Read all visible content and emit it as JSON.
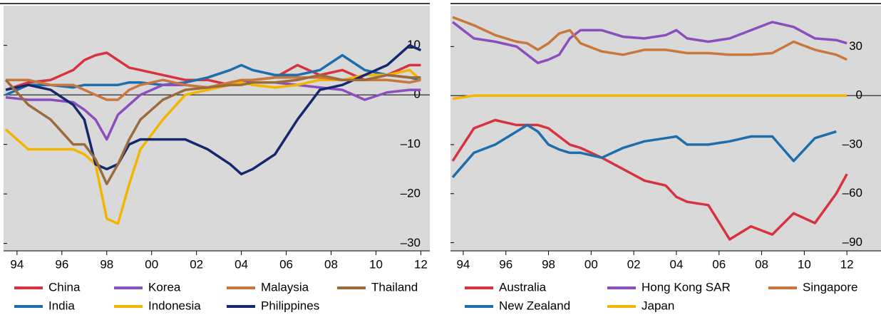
{
  "chart_data": [
    {
      "type": "line",
      "x": [
        1993.5,
        1994.5,
        1995.5,
        1996.5,
        1997.0,
        1997.5,
        1998.0,
        1998.5,
        1999.0,
        1999.5,
        2000.5,
        2001.5,
        2002.5,
        2003.5,
        2004.0,
        2004.5,
        2005.5,
        2006.5,
        2007.5,
        2008.5,
        2009.5,
        2010.5,
        2011.5,
        2012.0
      ],
      "xlim": [
        1993.4,
        2012.4
      ],
      "xticks": [
        {
          "value": 1994,
          "label": "94"
        },
        {
          "value": 1996,
          "label": "96"
        },
        {
          "value": 1998,
          "label": "98"
        },
        {
          "value": 2000,
          "label": "00"
        },
        {
          "value": 2002,
          "label": "02"
        },
        {
          "value": 2004,
          "label": "04"
        },
        {
          "value": 2006,
          "label": "06"
        },
        {
          "value": 2008,
          "label": "08"
        },
        {
          "value": 2010,
          "label": "10"
        },
        {
          "value": 2012,
          "label": "12"
        }
      ],
      "ylim": [
        -31.5,
        18
      ],
      "yticks": [
        {
          "value": -30,
          "label": "–30"
        },
        {
          "value": -20,
          "label": "–20"
        },
        {
          "value": -10,
          "label": "–10"
        },
        0,
        10
      ],
      "series": [
        {
          "name": "China",
          "color": "#d8323e",
          "values": [
            1,
            2.5,
            3,
            5,
            7,
            8,
            8.5,
            7,
            5.5,
            5,
            4,
            3,
            3,
            2,
            2.5,
            3,
            3.5,
            6,
            4,
            5,
            3,
            4,
            6,
            6
          ]
        },
        {
          "name": "India",
          "color": "#1f6eac",
          "values": [
            0,
            2,
            2,
            1.5,
            2,
            2,
            2,
            2,
            2.5,
            2.5,
            2,
            2.5,
            3.5,
            5,
            6,
            5,
            4,
            4,
            5,
            8,
            5,
            4,
            3.5,
            3
          ]
        },
        {
          "name": "Korea",
          "color": "#8b4fbd",
          "values": [
            -0.5,
            -1,
            -1,
            -1.5,
            -3,
            -5,
            -9,
            -4,
            -2,
            0,
            2,
            2,
            1.5,
            2,
            2.5,
            2.5,
            2.5,
            2,
            1.5,
            1,
            -1,
            0.5,
            1,
            1
          ]
        },
        {
          "name": "Indonesia",
          "color": "#f2b500",
          "values": [
            -7,
            -11,
            -11,
            -11,
            -12,
            -14,
            -25,
            -26,
            -18,
            -11,
            -5,
            0,
            1,
            2,
            2.5,
            2,
            1.5,
            2,
            3,
            3,
            4,
            4,
            5,
            3
          ]
        },
        {
          "name": "Malaysia",
          "color": "#c9773d",
          "values": [
            3,
            3,
            2,
            2,
            1,
            0,
            -1,
            -1,
            1,
            2,
            3,
            2,
            1.5,
            2.5,
            3,
            3,
            3.5,
            3.5,
            3.5,
            3,
            3,
            3,
            2.5,
            3
          ]
        },
        {
          "name": "Philippines",
          "color": "#14286e",
          "values": [
            1,
            2,
            1,
            -2,
            -5,
            -14,
            -15,
            -14,
            -10,
            -9,
            -9,
            -9,
            -11,
            -14,
            -16,
            -15,
            -12,
            -5,
            1,
            2,
            4,
            6,
            10,
            9
          ]
        },
        {
          "name": "Thailand",
          "color": "#9b6b3c",
          "values": [
            3,
            -2,
            -5,
            -10,
            -10,
            -13,
            -18,
            -14,
            -9,
            -5,
            -1,
            1,
            1.5,
            2,
            2,
            2.5,
            2.5,
            3,
            4,
            3,
            3,
            4,
            3.5,
            3.5
          ]
        }
      ]
    },
    {
      "type": "line",
      "x": [
        1993.5,
        1994.5,
        1995.5,
        1996.5,
        1997.0,
        1997.5,
        1998.0,
        1998.5,
        1999.0,
        1999.5,
        2000.5,
        2001.5,
        2002.5,
        2003.5,
        2004.0,
        2004.5,
        2005.5,
        2006.5,
        2007.5,
        2008.5,
        2009.5,
        2010.5,
        2011.5,
        2012.0
      ],
      "xlim": [
        1993.4,
        2013.6
      ],
      "xticks": [
        {
          "value": 1994,
          "label": "94"
        },
        {
          "value": 1996,
          "label": "96"
        },
        {
          "value": 1998,
          "label": "98"
        },
        {
          "value": 2000,
          "label": "00"
        },
        {
          "value": 2002,
          "label": "02"
        },
        {
          "value": 2004,
          "label": "04"
        },
        {
          "value": 2006,
          "label": "06"
        },
        {
          "value": 2008,
          "label": "08"
        },
        {
          "value": 2010,
          "label": "10"
        },
        {
          "value": 2012,
          "label": "12"
        }
      ],
      "ylim": [
        -95,
        55
      ],
      "yticks": [
        {
          "value": -90,
          "label": "–90"
        },
        {
          "value": -60,
          "label": "–60"
        },
        {
          "value": -30,
          "label": "–30"
        },
        0,
        30
      ],
      "series": [
        {
          "name": "Australia",
          "color": "#d8323e",
          "values": [
            -40,
            -20,
            -15,
            -18,
            -18,
            -18,
            -20,
            -25,
            -30,
            -32,
            -38,
            -45,
            -52,
            -55,
            -62,
            -65,
            -67,
            -88,
            -80,
            -85,
            -72,
            -78,
            -60,
            -48
          ]
        },
        {
          "name": "New Zealand",
          "color": "#1f6eac",
          "values": [
            -50,
            -35,
            -30,
            -22,
            -18,
            -22,
            -30,
            -33,
            -35,
            -35,
            -38,
            -32,
            -28,
            -26,
            -25,
            -30,
            -30,
            -28,
            -25,
            -25,
            -40,
            -26,
            -22,
            null
          ]
        },
        {
          "name": "Hong Kong SAR",
          "color": "#8b4fbd",
          "values": [
            45,
            35,
            33,
            30,
            25,
            20,
            22,
            25,
            35,
            40,
            40,
            36,
            35,
            37,
            40,
            35,
            33,
            35,
            40,
            45,
            42,
            35,
            34,
            32
          ]
        },
        {
          "name": "Japan",
          "color": "#f2b500",
          "values": [
            -2,
            0,
            0,
            0,
            0,
            0,
            0,
            0,
            0,
            0,
            0,
            0,
            0,
            0,
            0,
            0,
            0,
            0,
            0,
            0,
            0,
            0,
            0,
            0
          ]
        },
        {
          "name": "Singapore",
          "color": "#c9773d",
          "values": [
            48,
            43,
            37,
            33,
            32,
            28,
            32,
            38,
            40,
            32,
            27,
            25,
            28,
            28,
            27,
            26,
            26,
            25,
            25,
            26,
            33,
            28,
            25,
            22
          ]
        }
      ]
    }
  ]
}
